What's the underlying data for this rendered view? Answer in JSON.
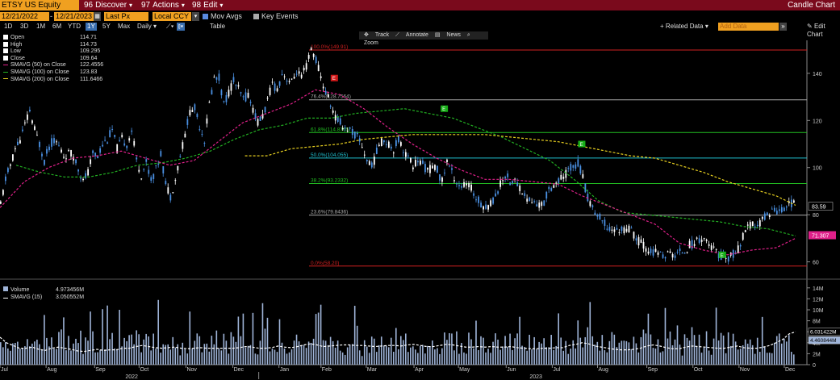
{
  "header": {
    "ticker": "ETSY US Equity",
    "menu": [
      {
        "glyph": "96",
        "label": "Discover"
      },
      {
        "glyph": "97",
        "label": "Actions"
      },
      {
        "glyph": "98",
        "label": "Edit"
      }
    ],
    "title": "Candle Chart"
  },
  "controls": {
    "start_date": "12/21/2022",
    "end_date": "12/21/2023",
    "price_field": "Last Px",
    "currency": "Local CCY",
    "mov_avgs": "Mov Avgs",
    "key_events": "Key Events",
    "periods": [
      "1D",
      "3D",
      "1M",
      "6M",
      "YTD",
      "1Y",
      "5Y",
      "Max"
    ],
    "selected_period": "1Y",
    "frequency": "Daily",
    "table_label": "Table",
    "related_data": "+ Related Data",
    "add_data_placeholder": "Add Data",
    "edit_chart": "Edit Chart"
  },
  "toolbar": {
    "track": "Track",
    "annotate": "Annotate",
    "news": "News",
    "zoom": "Zoom"
  },
  "colors": {
    "up": "#ffffff",
    "down": "#4a90e2",
    "sma50": "#e0208a",
    "sma100": "#22b022",
    "sma200": "#e8d020",
    "volume": "#9fb4d8",
    "vol_sma": "#ffffff",
    "fib_red": "#d02020",
    "fib_green": "#22c022",
    "fib_cyan": "#20c0d0",
    "fib_grey": "#aaaaaa",
    "header_bg": "#7a0a1c",
    "accent": "#f0a020"
  },
  "legend": [
    {
      "label": "Open",
      "value": "114.71"
    },
    {
      "label": "High",
      "value": "114.73"
    },
    {
      "label": "Low",
      "value": "109.295"
    },
    {
      "label": "Close",
      "value": "109.64"
    },
    {
      "label": "SMAVG (50)  on Close",
      "value": "122.4556"
    },
    {
      "label": "SMAVG (100)  on Close",
      "value": "123.83"
    },
    {
      "label": "SMAVG (200)  on Close",
      "value": "111.6466"
    }
  ],
  "volume_legend": [
    {
      "label": "Volume",
      "value": "4.973456M"
    },
    {
      "label": "SMAVG (15)",
      "value": "3.050552M"
    }
  ],
  "chart_data": {
    "type": "candlestick",
    "x_range": [
      "2021-07-01",
      "2023-12-21"
    ],
    "x_month_ticks": [
      "Jul",
      "Aug",
      "Sep",
      "Oct",
      "Nov",
      "Dec",
      "Jan",
      "Feb",
      "Mar",
      "Apr",
      "May",
      "Jun",
      "Jul",
      "Aug",
      "Sep",
      "Oct",
      "Nov",
      "Dec"
    ],
    "x_year_labels": [
      "2022",
      "2023"
    ],
    "price_axis": {
      "ylim": [
        53,
        154
      ],
      "ticks": [
        60,
        80,
        100,
        120,
        140
      ]
    },
    "last_price_label": "83.59",
    "last_sma_label": "71.307",
    "fib_levels": [
      {
        "label": "100.0%(149.91)",
        "value": 149.91
      },
      {
        "label": "76.4%(128.7564)",
        "value": 128.7564
      },
      {
        "label": "61.8%(114.8765)",
        "value": 114.8765
      },
      {
        "label": "50.0%(104.055)",
        "value": 104.055
      },
      {
        "label": "38.2%(93.2332)",
        "value": 93.2332
      },
      {
        "label": "23.6%(79.8436)",
        "value": 79.8436
      },
      {
        "label": "0.0%(58.20)",
        "value": 58.2
      }
    ],
    "price_series": [
      [
        0,
        84
      ],
      [
        6,
        95
      ],
      [
        12,
        101
      ],
      [
        18,
        108
      ],
      [
        24,
        112
      ],
      [
        30,
        118
      ],
      [
        36,
        124
      ],
      [
        42,
        116
      ],
      [
        48,
        110
      ],
      [
        54,
        103
      ],
      [
        60,
        109
      ],
      [
        66,
        112
      ],
      [
        72,
        109
      ],
      [
        78,
        105
      ],
      [
        84,
        106
      ],
      [
        90,
        105
      ],
      [
        96,
        100
      ],
      [
        102,
        94
      ],
      [
        108,
        98
      ],
      [
        114,
        106
      ],
      [
        120,
        105
      ],
      [
        126,
        110
      ],
      [
        132,
        112
      ],
      [
        138,
        116
      ],
      [
        144,
        108
      ],
      [
        150,
        112
      ],
      [
        156,
        110
      ],
      [
        162,
        116
      ],
      [
        168,
        103
      ],
      [
        174,
        97
      ],
      [
        180,
        102
      ],
      [
        186,
        95
      ],
      [
        192,
        99
      ],
      [
        198,
        106
      ],
      [
        204,
        93
      ],
      [
        210,
        88
      ],
      [
        216,
        95
      ],
      [
        222,
        105
      ],
      [
        228,
        114
      ],
      [
        234,
        124
      ],
      [
        240,
        125
      ],
      [
        246,
        118
      ],
      [
        252,
        112
      ],
      [
        258,
        127
      ],
      [
        264,
        138
      ],
      [
        270,
        138
      ],
      [
        276,
        127
      ],
      [
        282,
        132
      ],
      [
        288,
        137
      ],
      [
        294,
        133
      ],
      [
        300,
        129
      ],
      [
        306,
        131
      ],
      [
        312,
        125
      ],
      [
        318,
        119
      ],
      [
        324,
        122
      ],
      [
        330,
        128
      ],
      [
        336,
        136
      ],
      [
        342,
        133
      ],
      [
        348,
        140
      ],
      [
        354,
        138
      ],
      [
        360,
        136
      ],
      [
        366,
        141
      ],
      [
        372,
        138
      ],
      [
        378,
        143
      ],
      [
        384,
        150
      ],
      [
        390,
        146
      ],
      [
        396,
        138
      ],
      [
        402,
        132
      ],
      [
        408,
        127
      ],
      [
        414,
        121
      ],
      [
        420,
        119
      ],
      [
        426,
        117
      ],
      [
        432,
        116
      ],
      [
        438,
        114
      ],
      [
        444,
        112
      ],
      [
        450,
        106
      ],
      [
        456,
        101
      ],
      [
        462,
        103
      ],
      [
        468,
        110
      ],
      [
        474,
        112
      ],
      [
        480,
        110
      ],
      [
        486,
        108
      ],
      [
        492,
        112
      ],
      [
        498,
        108
      ],
      [
        504,
        104
      ],
      [
        510,
        101
      ],
      [
        516,
        103
      ],
      [
        522,
        101
      ],
      [
        528,
        99
      ],
      [
        534,
        100
      ],
      [
        540,
        99
      ],
      [
        546,
        94
      ],
      [
        552,
        103
      ],
      [
        558,
        98
      ],
      [
        564,
        94
      ],
      [
        570,
        92
      ],
      [
        576,
        93
      ],
      [
        582,
        91
      ],
      [
        588,
        87
      ],
      [
        594,
        85
      ],
      [
        600,
        83
      ],
      [
        606,
        85
      ],
      [
        612,
        88
      ],
      [
        618,
        93
      ],
      [
        624,
        97
      ],
      [
        630,
        94
      ],
      [
        636,
        94
      ],
      [
        642,
        92
      ],
      [
        648,
        88
      ],
      [
        654,
        86
      ],
      [
        660,
        85
      ],
      [
        666,
        84
      ],
      [
        672,
        85
      ],
      [
        678,
        91
      ],
      [
        684,
        93
      ],
      [
        690,
        94
      ],
      [
        696,
        96
      ],
      [
        702,
        99
      ],
      [
        708,
        101
      ],
      [
        714,
        102
      ],
      [
        720,
        96
      ],
      [
        726,
        87
      ],
      [
        732,
        83
      ],
      [
        738,
        80
      ],
      [
        744,
        77
      ],
      [
        750,
        75
      ],
      [
        756,
        74
      ],
      [
        762,
        73
      ],
      [
        768,
        74
      ],
      [
        774,
        74
      ],
      [
        780,
        73
      ],
      [
        786,
        70
      ],
      [
        792,
        68
      ],
      [
        798,
        66
      ],
      [
        804,
        64
      ],
      [
        810,
        64
      ],
      [
        816,
        63
      ],
      [
        822,
        63
      ],
      [
        828,
        63
      ],
      [
        834,
        63
      ],
      [
        840,
        64
      ],
      [
        846,
        65
      ],
      [
        852,
        67
      ],
      [
        858,
        68
      ],
      [
        864,
        70
      ],
      [
        870,
        70
      ],
      [
        876,
        67
      ],
      [
        882,
        65
      ],
      [
        888,
        63
      ],
      [
        894,
        62
      ],
      [
        900,
        62
      ],
      [
        906,
        63
      ],
      [
        912,
        65
      ],
      [
        918,
        71
      ],
      [
        924,
        74
      ],
      [
        930,
        76
      ],
      [
        936,
        75
      ],
      [
        942,
        78
      ],
      [
        948,
        80
      ],
      [
        954,
        82
      ],
      [
        960,
        82
      ],
      [
        966,
        82
      ],
      [
        972,
        84
      ],
      [
        978,
        85
      ],
      [
        984,
        84
      ]
    ],
    "sma50": [
      [
        0,
        83
      ],
      [
        30,
        94
      ],
      [
        60,
        100
      ],
      [
        90,
        104
      ],
      [
        120,
        105
      ],
      [
        150,
        107
      ],
      [
        180,
        104
      ],
      [
        210,
        101
      ],
      [
        240,
        103
      ],
      [
        270,
        111
      ],
      [
        300,
        119
      ],
      [
        330,
        123
      ],
      [
        360,
        127
      ],
      [
        390,
        133
      ],
      [
        420,
        131
      ],
      [
        450,
        125
      ],
      [
        480,
        117
      ],
      [
        510,
        110
      ],
      [
        540,
        104
      ],
      [
        570,
        99
      ],
      [
        600,
        95
      ],
      [
        630,
        95
      ],
      [
        660,
        94
      ],
      [
        690,
        93
      ],
      [
        720,
        88
      ],
      [
        750,
        84
      ],
      [
        780,
        80
      ],
      [
        810,
        76
      ],
      [
        840,
        68
      ],
      [
        870,
        65
      ],
      [
        900,
        63
      ],
      [
        930,
        65
      ],
      [
        960,
        66
      ],
      [
        984,
        70
      ]
    ],
    "sma100": [
      [
        20,
        101
      ],
      [
        50,
        98
      ],
      [
        80,
        96
      ],
      [
        110,
        96
      ],
      [
        140,
        98
      ],
      [
        170,
        101
      ],
      [
        200,
        102
      ],
      [
        230,
        104
      ],
      [
        260,
        107
      ],
      [
        290,
        112
      ],
      [
        320,
        116
      ],
      [
        350,
        118
      ],
      [
        380,
        121
      ],
      [
        410,
        121
      ],
      [
        440,
        123
      ],
      [
        470,
        124
      ],
      [
        500,
        125
      ],
      [
        530,
        123
      ],
      [
        560,
        121
      ],
      [
        590,
        117
      ],
      [
        620,
        113
      ],
      [
        650,
        108
      ],
      [
        680,
        103
      ],
      [
        710,
        95
      ],
      [
        740,
        86
      ],
      [
        770,
        81
      ],
      [
        800,
        80
      ],
      [
        830,
        79
      ],
      [
        860,
        78
      ],
      [
        890,
        77
      ],
      [
        920,
        75
      ],
      [
        950,
        74
      ],
      [
        984,
        71
      ]
    ],
    "sma200": [
      [
        303,
        105
      ],
      [
        330,
        105
      ],
      [
        360,
        108
      ],
      [
        390,
        109
      ],
      [
        420,
        110
      ],
      [
        450,
        112
      ],
      [
        480,
        113
      ],
      [
        510,
        114
      ],
      [
        540,
        114
      ],
      [
        570,
        114
      ],
      [
        600,
        114
      ],
      [
        630,
        113
      ],
      [
        660,
        112
      ],
      [
        690,
        111
      ],
      [
        720,
        109
      ],
      [
        750,
        107
      ],
      [
        780,
        105
      ],
      [
        810,
        104
      ],
      [
        840,
        101
      ],
      [
        870,
        98
      ],
      [
        900,
        94
      ],
      [
        930,
        91
      ],
      [
        960,
        88
      ],
      [
        984,
        84
      ]
    ],
    "key_event_markers": [
      {
        "label": "E",
        "color": "red"
      },
      {
        "label": "E",
        "color": "green"
      },
      {
        "label": "E",
        "color": "green"
      },
      {
        "label": "E",
        "color": "green"
      }
    ],
    "volume_axis": {
      "ylim": [
        0,
        15
      ],
      "unit": "M",
      "ticks": [
        "0",
        "2M",
        "4M",
        "6M",
        "8M",
        "10M",
        "12M",
        "14M"
      ]
    },
    "volume_labels": [
      "6.031422M",
      "4.460844M"
    ],
    "volume_series": [
      [
        0,
        5
      ],
      [
        8,
        4
      ],
      [
        16,
        3.5
      ],
      [
        24,
        3
      ],
      [
        32,
        3
      ],
      [
        40,
        3.2
      ],
      [
        48,
        2.8
      ],
      [
        56,
        2.6
      ],
      [
        64,
        3
      ],
      [
        72,
        3.2
      ],
      [
        80,
        3
      ],
      [
        88,
        2.8
      ],
      [
        96,
        2.5
      ],
      [
        104,
        2.4
      ],
      [
        112,
        2.6
      ],
      [
        120,
        2.8
      ],
      [
        128,
        2.6
      ],
      [
        136,
        2.7
      ],
      [
        144,
        2.7
      ],
      [
        152,
        3
      ],
      [
        160,
        3
      ],
      [
        168,
        3.3
      ],
      [
        176,
        3.5
      ],
      [
        184,
        3.3
      ],
      [
        192,
        3.1
      ],
      [
        200,
        3
      ],
      [
        208,
        3.1
      ],
      [
        216,
        3.2
      ],
      [
        224,
        3
      ],
      [
        232,
        2.9
      ],
      [
        240,
        3
      ],
      [
        248,
        3.1
      ],
      [
        256,
        3
      ],
      [
        264,
        3
      ],
      [
        272,
        3
      ],
      [
        280,
        3
      ],
      [
        288,
        3
      ],
      [
        296,
        3.1
      ],
      [
        304,
        3.3
      ],
      [
        312,
        3.2
      ],
      [
        320,
        3
      ],
      [
        328,
        3
      ],
      [
        336,
        3.1
      ],
      [
        344,
        3.4
      ],
      [
        352,
        3.2
      ],
      [
        360,
        3.1
      ],
      [
        368,
        3.3
      ],
      [
        376,
        3.6
      ],
      [
        384,
        3.8
      ],
      [
        392,
        3.6
      ],
      [
        400,
        3.3
      ],
      [
        408,
        3.4
      ],
      [
        416,
        3.5
      ],
      [
        424,
        3.6
      ],
      [
        432,
        3.6
      ],
      [
        440,
        3.5
      ],
      [
        448,
        3.5
      ],
      [
        456,
        3.4
      ],
      [
        464,
        3.3
      ],
      [
        472,
        3.4
      ],
      [
        480,
        3.5
      ],
      [
        488,
        3.5
      ],
      [
        496,
        3.4
      ],
      [
        504,
        3.6
      ],
      [
        512,
        3.7
      ],
      [
        520,
        3.5
      ],
      [
        528,
        3.3
      ],
      [
        536,
        3.3
      ],
      [
        544,
        3.5
      ],
      [
        552,
        3.7
      ],
      [
        560,
        3.6
      ],
      [
        568,
        3.4
      ],
      [
        576,
        3.2
      ],
      [
        584,
        3.2
      ],
      [
        592,
        3.3
      ],
      [
        600,
        3.2
      ],
      [
        608,
        3.3
      ],
      [
        616,
        3.2
      ],
      [
        624,
        3.2
      ],
      [
        632,
        3.3
      ],
      [
        640,
        3.1
      ],
      [
        648,
        3
      ],
      [
        656,
        2.9
      ],
      [
        664,
        2.9
      ],
      [
        672,
        3
      ],
      [
        680,
        3
      ],
      [
        688,
        3.1
      ],
      [
        696,
        3.1
      ],
      [
        704,
        3.5
      ],
      [
        712,
        3.7
      ],
      [
        720,
        4
      ],
      [
        728,
        3.8
      ],
      [
        736,
        3.4
      ],
      [
        744,
        3.2
      ],
      [
        752,
        3
      ],
      [
        760,
        2.8
      ],
      [
        768,
        2.7
      ],
      [
        776,
        2.7
      ],
      [
        784,
        2.8
      ],
      [
        792,
        3
      ],
      [
        800,
        3.4
      ],
      [
        808,
        3.6
      ],
      [
        816,
        3.4
      ],
      [
        824,
        3.1
      ],
      [
        832,
        2.9
      ],
      [
        840,
        2.9
      ],
      [
        848,
        3.2
      ],
      [
        856,
        3.4
      ],
      [
        864,
        3.3
      ],
      [
        872,
        3.2
      ],
      [
        880,
        3.1
      ],
      [
        888,
        3
      ],
      [
        896,
        3
      ],
      [
        904,
        3.2
      ],
      [
        912,
        3.4
      ],
      [
        920,
        3.1
      ],
      [
        928,
        3
      ],
      [
        936,
        3
      ],
      [
        944,
        3.2
      ],
      [
        952,
        3.5
      ],
      [
        960,
        4
      ],
      [
        968,
        4.6
      ],
      [
        976,
        5.6
      ],
      [
        984,
        6
      ]
    ]
  }
}
